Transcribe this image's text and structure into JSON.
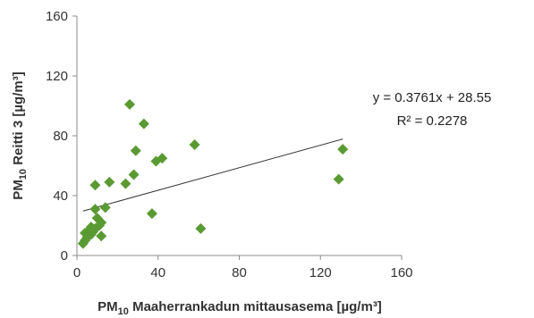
{
  "chart_data": {
    "type": "scatter",
    "xlabel_main": "PM",
    "xlabel_sub": "10",
    "xlabel_rest": " Maaherrankadun mittausasema [µg/m³]",
    "ylabel_main": "PM",
    "ylabel_sub": "10",
    "ylabel_rest": " Reitti 3 [µg/m³]",
    "xlim": [
      0,
      160
    ],
    "ylim": [
      0,
      160
    ],
    "xticks": [
      "0",
      "40",
      "80",
      "120",
      "160"
    ],
    "yticks": [
      "0",
      "40",
      "80",
      "120",
      "160"
    ],
    "grid": false,
    "marker_color": "#5a9a32",
    "trendline_color": "#333333",
    "trendline": {
      "slope": 0.3761,
      "intercept": 28.55,
      "x_start": 3,
      "x_end": 131,
      "equation": "y = 0.3761x + 28.55",
      "r_squared": "R² = 0.2278"
    },
    "points": [
      {
        "x": 3,
        "y": 8
      },
      {
        "x": 4,
        "y": 10
      },
      {
        "x": 4,
        "y": 15
      },
      {
        "x": 5,
        "y": 12
      },
      {
        "x": 6,
        "y": 17
      },
      {
        "x": 7,
        "y": 14
      },
      {
        "x": 7,
        "y": 19
      },
      {
        "x": 8,
        "y": 16
      },
      {
        "x": 9,
        "y": 18
      },
      {
        "x": 9,
        "y": 31
      },
      {
        "x": 9,
        "y": 47
      },
      {
        "x": 10,
        "y": 25
      },
      {
        "x": 11,
        "y": 20
      },
      {
        "x": 12,
        "y": 22
      },
      {
        "x": 12,
        "y": 13
      },
      {
        "x": 14,
        "y": 32
      },
      {
        "x": 16,
        "y": 49
      },
      {
        "x": 24,
        "y": 48
      },
      {
        "x": 26,
        "y": 101
      },
      {
        "x": 28,
        "y": 54
      },
      {
        "x": 29,
        "y": 70
      },
      {
        "x": 33,
        "y": 88
      },
      {
        "x": 37,
        "y": 28
      },
      {
        "x": 39,
        "y": 63
      },
      {
        "x": 42,
        "y": 65
      },
      {
        "x": 58,
        "y": 74
      },
      {
        "x": 61,
        "y": 18
      },
      {
        "x": 129,
        "y": 51
      },
      {
        "x": 131,
        "y": 71
      }
    ]
  }
}
